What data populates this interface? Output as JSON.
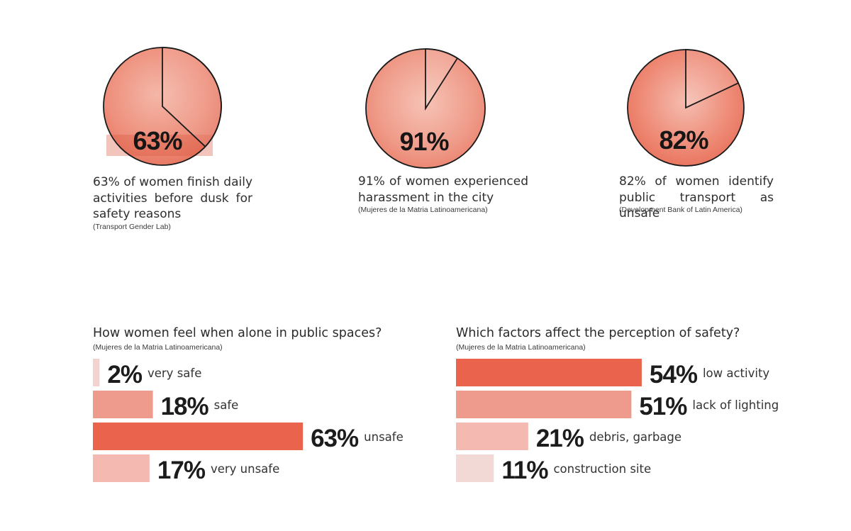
{
  "stats": [
    {
      "percent": "63%",
      "value": 63,
      "description": "63% of women finish daily activities before dusk for safety reasons",
      "source": "(Transport Gender Lab)"
    },
    {
      "percent": "91%",
      "value": 91,
      "description": "91% of women experienced harassment in the city",
      "source": "(Mujeres de la Matria Latinoamericana)"
    },
    {
      "percent": "82%",
      "value": 82,
      "description": "82% of women identify public transport as unsafe",
      "source": "(Development Bank of Latin America)"
    }
  ],
  "chart_data": [
    {
      "type": "bar",
      "orientation": "horizontal",
      "title": "How women feel when alone in public spaces?",
      "source": "(Mujeres de la Matria Latinoamericana)",
      "categories": [
        "very safe",
        "safe",
        "unsafe",
        "very unsafe"
      ],
      "values": [
        2,
        18,
        63,
        17
      ],
      "value_labels": [
        "2%",
        "18%",
        "63%",
        "17%"
      ],
      "colors": [
        "#f3d3d0",
        "#ee9b8e",
        "#e9634d",
        "#f4b9b1"
      ]
    },
    {
      "type": "bar",
      "orientation": "horizontal",
      "title": "Which factors affect the perception of safety?",
      "source": "(Mujeres de la Matria Latinoamericana)",
      "categories": [
        "low activity",
        "lack of lighting",
        "debris, garbage",
        "construction site"
      ],
      "values": [
        54,
        51,
        21,
        11
      ],
      "value_labels": [
        "54%",
        "51%",
        "21%",
        "11%"
      ],
      "colors": [
        "#e9634d",
        "#ee9b8e",
        "#f4b9b1",
        "#f3d9d6"
      ]
    }
  ],
  "colors": {
    "pie_fill": "#f1a292",
    "pie_accent": "#e66a55",
    "pie_outline": "#1a1a1a"
  }
}
